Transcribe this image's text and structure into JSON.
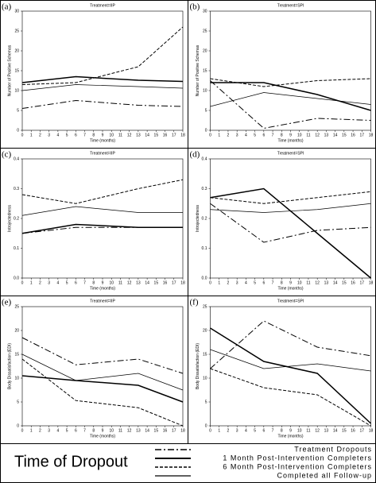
{
  "chart_data": [
    {
      "type": "line",
      "panel_label": "(a)",
      "title": "Treatment=IIP",
      "x_label": "Time (months)",
      "y_label": "Number of Positive Schemas",
      "x": [
        0,
        6,
        13,
        18
      ],
      "xlim": [
        0,
        18
      ],
      "xticks": [
        0,
        1,
        2,
        3,
        4,
        5,
        6,
        7,
        8,
        9,
        10,
        11,
        12,
        13,
        14,
        15,
        16,
        17,
        18
      ],
      "ylim": [
        0,
        30
      ],
      "yticks": [
        0,
        5,
        10,
        15,
        20,
        25,
        30
      ],
      "series": [
        {
          "name": "Treatment Dropouts",
          "color": "#000000",
          "line_style": "dash-dot",
          "values": [
            5.5,
            7.5,
            6.3,
            6.0
          ]
        },
        {
          "name": "1 Month Post-Intervention Completers",
          "color": "#000000",
          "line_style": "long-dash",
          "values": [
            12,
            13.5,
            12.6,
            12.3
          ]
        },
        {
          "name": "6 Month Post-Intervention Completers",
          "color": "#000000",
          "line_style": "dash",
          "values": [
            11.5,
            12,
            16,
            26
          ]
        },
        {
          "name": "Completed all Follow-up",
          "color": "#000000",
          "line_style": "solid",
          "values": [
            10,
            11.5,
            11,
            10.6
          ]
        }
      ]
    },
    {
      "type": "line",
      "panel_label": "(b)",
      "title": "Treatment=SPI",
      "x_label": "Time (months)",
      "y_label": "Number of Positive Schemas",
      "x": [
        0,
        6,
        12,
        18
      ],
      "xlim": [
        0,
        18
      ],
      "xticks": [
        0,
        1,
        2,
        3,
        4,
        5,
        6,
        7,
        8,
        9,
        10,
        11,
        12,
        13,
        14,
        15,
        16,
        17,
        18
      ],
      "ylim": [
        0,
        30
      ],
      "yticks": [
        0,
        5,
        10,
        15,
        20,
        25,
        30
      ],
      "series": [
        {
          "name": "Treatment Dropouts",
          "color": "#000000",
          "line_style": "dash-dot",
          "values": [
            12.5,
            0.5,
            3,
            2.5
          ]
        },
        {
          "name": "1 Month Post-Intervention Completers",
          "color": "#000000",
          "line_style": "long-dash",
          "values": [
            12,
            12,
            9,
            5
          ]
        },
        {
          "name": "6 Month Post-Intervention Completers",
          "color": "#000000",
          "line_style": "dash",
          "values": [
            13,
            11,
            12.5,
            13
          ]
        },
        {
          "name": "Completed all Follow-up",
          "color": "#000000",
          "line_style": "solid",
          "values": [
            6,
            9.5,
            8,
            6.5
          ]
        }
      ]
    },
    {
      "type": "line",
      "panel_label": "(c)",
      "title": "Treatment=IIP",
      "x_label": "Time (months)",
      "y_label": "Introjectedness",
      "x": [
        0,
        6,
        13,
        18
      ],
      "xlim": [
        0,
        18
      ],
      "xticks": [
        0,
        1,
        2,
        3,
        4,
        5,
        6,
        7,
        8,
        9,
        10,
        11,
        12,
        13,
        14,
        15,
        16,
        17,
        18
      ],
      "ylim": [
        0,
        0.4
      ],
      "yticks": [
        {
          "value": 0,
          "label": "0.0"
        },
        0.1,
        0.2,
        0.3,
        0.4
      ],
      "series": [
        {
          "name": "Treatment Dropouts",
          "color": "#000000",
          "line_style": "dash-dot",
          "values": [
            0.15,
            0.17,
            0.17,
            0.17
          ]
        },
        {
          "name": "1 Month Post-Intervention Completers",
          "color": "#000000",
          "line_style": "long-dash",
          "values": [
            0.15,
            0.18,
            0.17,
            0.17
          ]
        },
        {
          "name": "6 Month Post-Intervention Completers",
          "color": "#000000",
          "line_style": "dash",
          "values": [
            0.28,
            0.25,
            0.3,
            0.33
          ]
        },
        {
          "name": "Completed all Follow-up",
          "color": "#000000",
          "line_style": "solid",
          "values": [
            0.21,
            0.24,
            0.22,
            0.22
          ]
        }
      ]
    },
    {
      "type": "line",
      "panel_label": "(d)",
      "title": "Treatment=SPI",
      "x_label": "Time (months)",
      "y_label": "Introjectedness",
      "x": [
        0,
        6,
        12,
        18
      ],
      "xlim": [
        0,
        18
      ],
      "xticks": [
        0,
        1,
        2,
        3,
        4,
        5,
        6,
        7,
        8,
        9,
        10,
        11,
        12,
        13,
        14,
        15,
        16,
        17,
        18
      ],
      "ylim": [
        0,
        0.4
      ],
      "yticks": [
        {
          "value": 0,
          "label": "0.0"
        },
        0.1,
        0.2,
        0.3,
        0.4
      ],
      "series": [
        {
          "name": "Treatment Dropouts",
          "color": "#000000",
          "line_style": "dash-dot",
          "values": [
            0.25,
            0.12,
            0.16,
            0.17
          ]
        },
        {
          "name": "1 Month Post-Intervention Completers",
          "color": "#000000",
          "line_style": "long-dash",
          "values": [
            0.27,
            0.3,
            0.15,
            0.0
          ]
        },
        {
          "name": "6 Month Post-Intervention Completers",
          "color": "#000000",
          "line_style": "dash",
          "values": [
            0.27,
            0.25,
            0.27,
            0.29
          ]
        },
        {
          "name": "Completed all Follow-up",
          "color": "#000000",
          "line_style": "solid",
          "values": [
            0.23,
            0.22,
            0.23,
            0.25
          ]
        }
      ]
    },
    {
      "type": "line",
      "panel_label": "(e)",
      "title": "Treatment=IIP",
      "x_label": "Time (months)",
      "y_label": "Body Dissatisfaction (EDI)",
      "x": [
        0,
        6,
        13,
        18
      ],
      "xlim": [
        0,
        18
      ],
      "xticks": [
        0,
        1,
        2,
        3,
        4,
        5,
        6,
        7,
        8,
        9,
        10,
        11,
        12,
        13,
        14,
        15,
        16,
        17,
        18
      ],
      "ylim": [
        0,
        25
      ],
      "yticks": [
        0,
        5,
        10,
        15,
        20,
        25
      ],
      "series": [
        {
          "name": "Treatment Dropouts",
          "color": "#000000",
          "line_style": "dash-dot",
          "values": [
            18.5,
            12.8,
            14,
            11
          ]
        },
        {
          "name": "1 Month Post-Intervention Completers",
          "color": "#000000",
          "line_style": "long-dash",
          "values": [
            10.5,
            9.5,
            8.5,
            5
          ]
        },
        {
          "name": "6 Month Post-Intervention Completers",
          "color": "#000000",
          "line_style": "dash",
          "values": [
            14,
            5.3,
            3.8,
            0
          ]
        },
        {
          "name": "Completed all Follow-up",
          "color": "#000000",
          "line_style": "solid",
          "values": [
            15,
            9.5,
            11,
            7.5
          ]
        }
      ]
    },
    {
      "type": "line",
      "panel_label": "(f)",
      "title": "Treatment=SPI",
      "x_label": "Time (months)",
      "y_label": "Body Dissatisfaction (EDI)",
      "x": [
        0,
        6,
        12,
        18
      ],
      "xlim": [
        0,
        18
      ],
      "xticks": [
        0,
        1,
        2,
        3,
        4,
        5,
        6,
        7,
        8,
        9,
        10,
        11,
        12,
        13,
        14,
        15,
        16,
        17,
        18
      ],
      "ylim": [
        0,
        25
      ],
      "yticks": [
        0,
        5,
        10,
        15,
        20,
        25
      ],
      "series": [
        {
          "name": "Treatment Dropouts",
          "color": "#000000",
          "line_style": "dash-dot",
          "values": [
            12,
            22,
            16.5,
            14.7
          ]
        },
        {
          "name": "1 Month Post-Intervention Completers",
          "color": "#000000",
          "line_style": "long-dash",
          "values": [
            20.5,
            13.5,
            11,
            0.5
          ]
        },
        {
          "name": "6 Month Post-Intervention Completers",
          "color": "#000000",
          "line_style": "dash",
          "values": [
            12,
            8,
            6.5,
            0
          ]
        },
        {
          "name": "Completed all Follow-up",
          "color": "#000000",
          "line_style": "solid",
          "values": [
            16,
            12,
            13,
            11.5
          ]
        }
      ]
    }
  ],
  "legend": {
    "title": "Time of Dropout"
  }
}
